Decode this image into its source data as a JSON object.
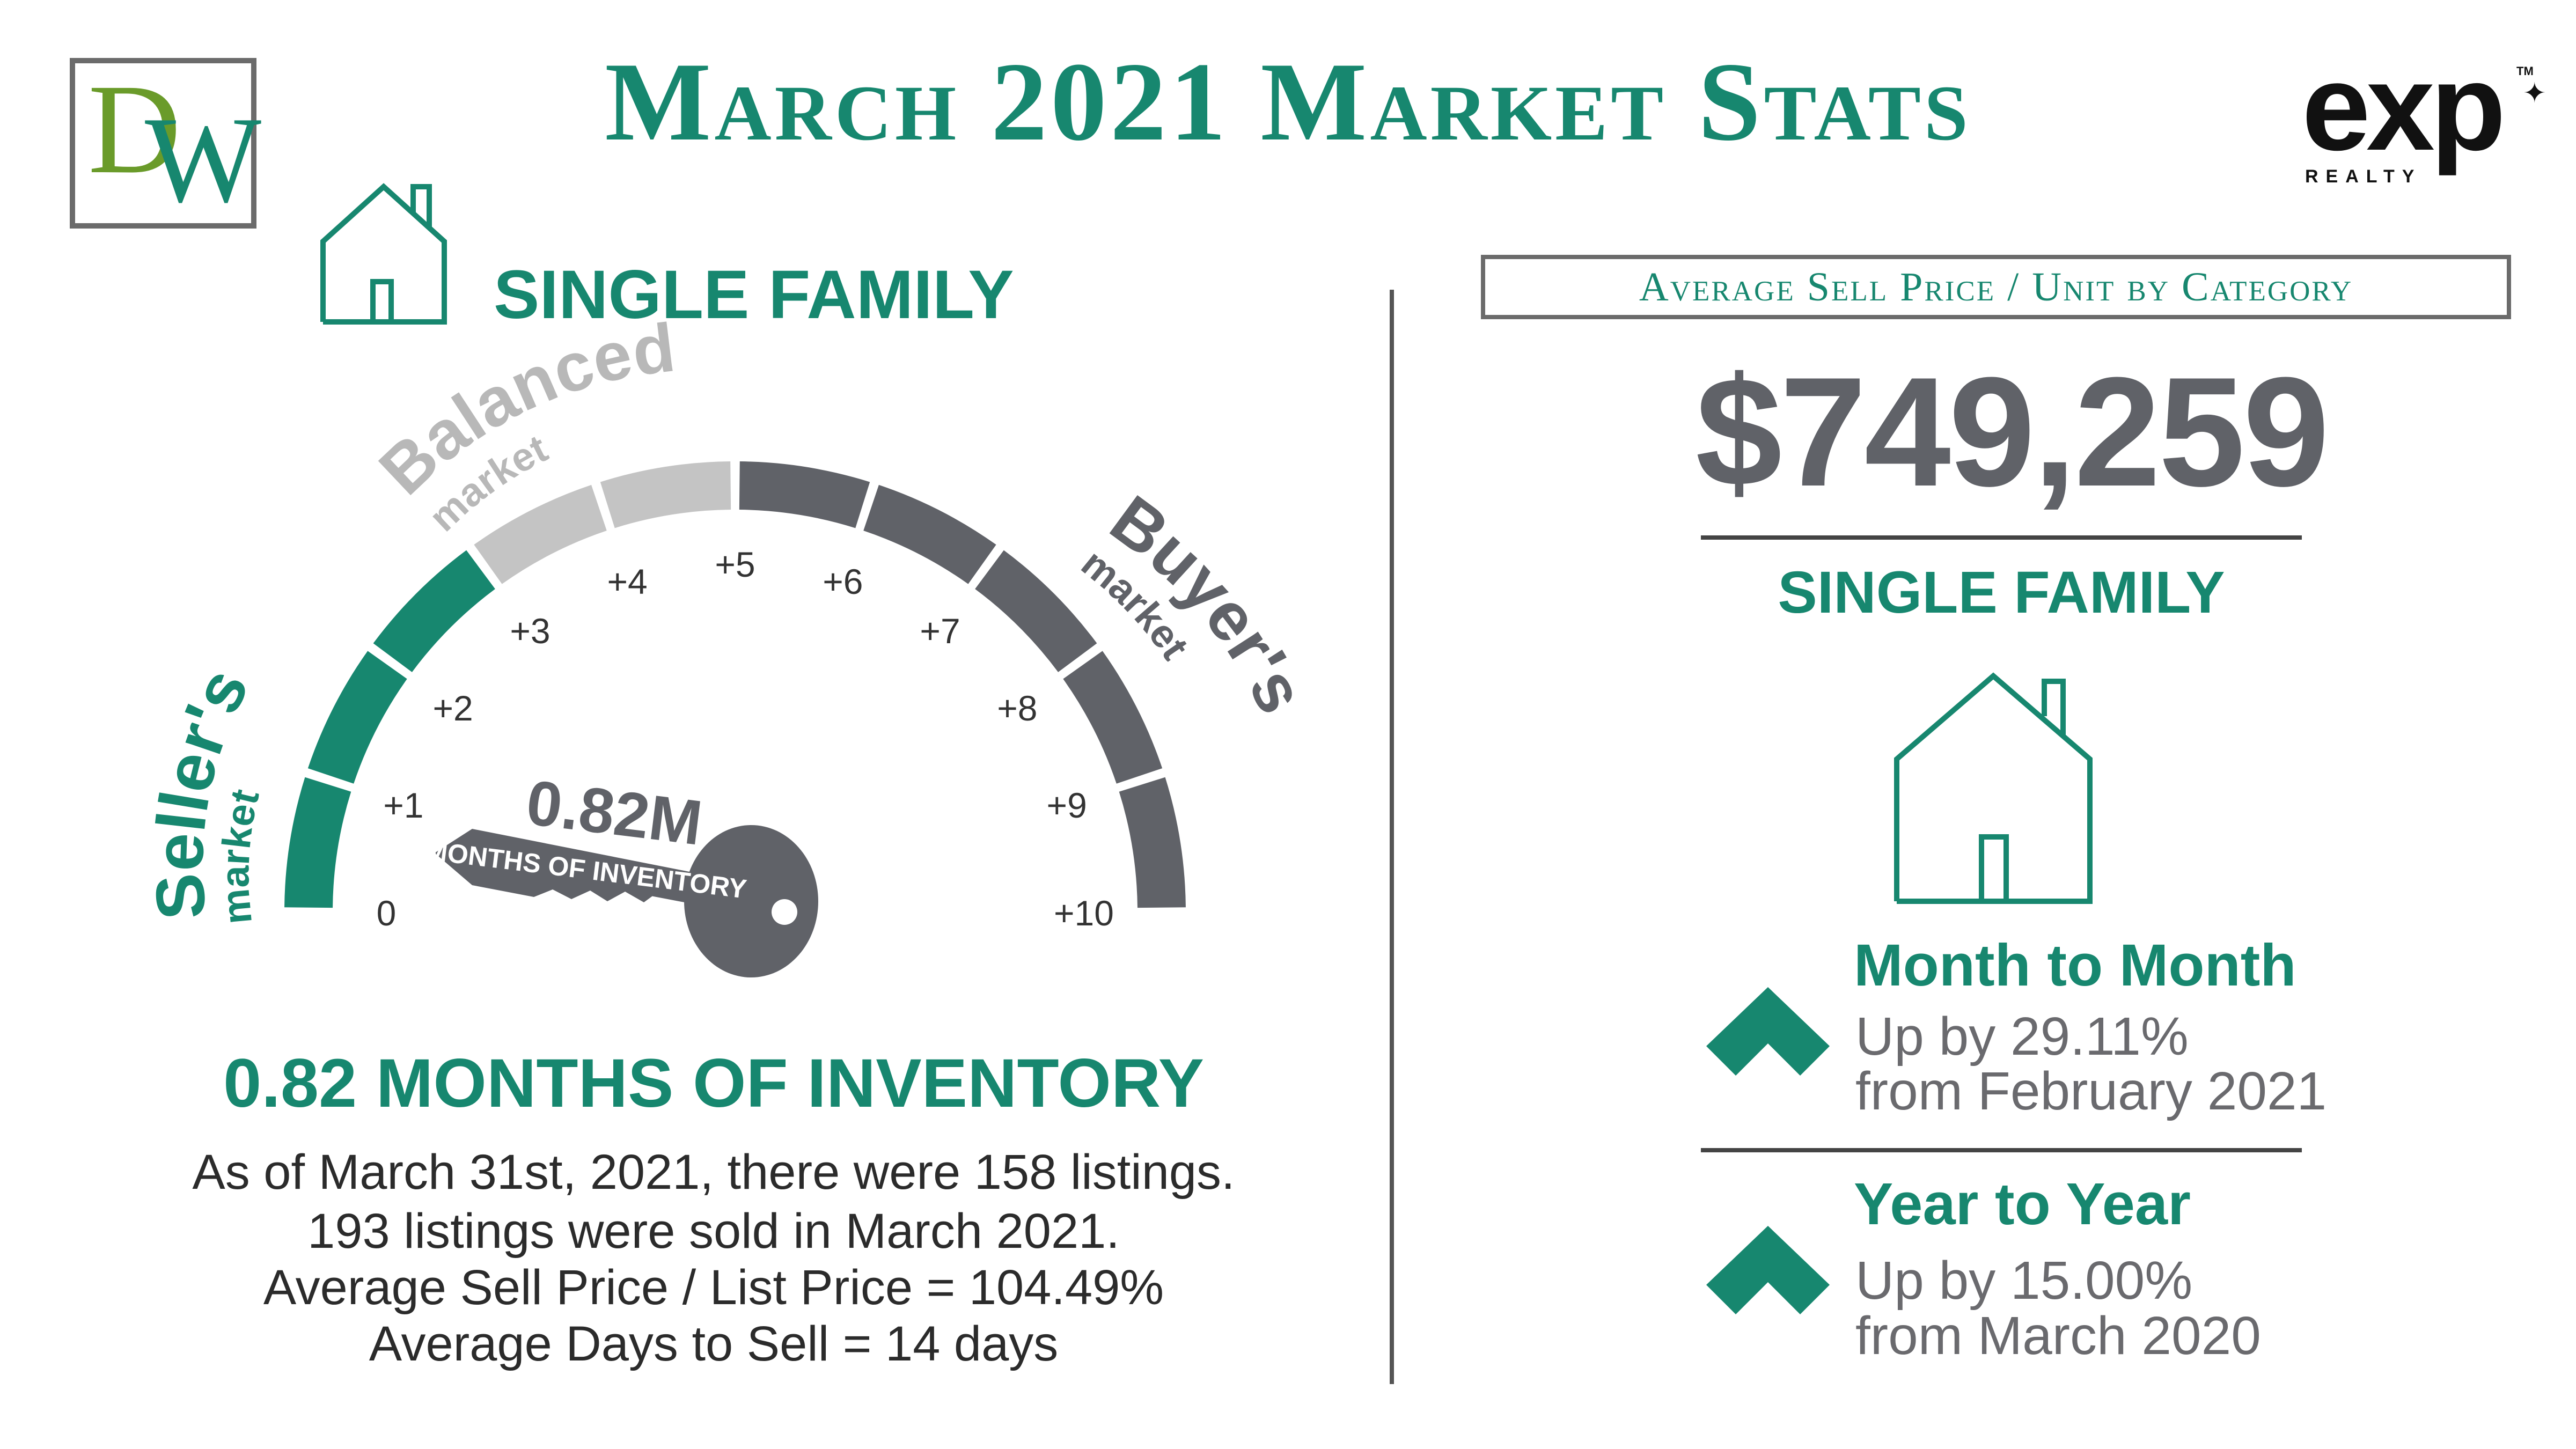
{
  "header": {
    "title": "March 2021 Market Stats",
    "logo_left": {
      "letter_1": "D",
      "letter_2": "W"
    },
    "logo_right": {
      "wordmark": "exp",
      "subtext": "REALTY",
      "trademark": "TM"
    }
  },
  "gauge": {
    "heading": "SINGLE FAMILY",
    "zones": {
      "seller": {
        "title": "Seller's",
        "sub": "market"
      },
      "balanced": {
        "title": "Balanced",
        "sub": "market"
      },
      "buyer": {
        "title": "Buyer's",
        "sub": "market"
      }
    },
    "ticks": [
      "0",
      "+1",
      "+2",
      "+3",
      "+4",
      "+5",
      "+6",
      "+7",
      "+8",
      "+9",
      "+10"
    ],
    "key_value": "0.82M",
    "key_label": "MONTHS OF INVENTORY",
    "value": 0.82,
    "colors": {
      "seller": "#17876f",
      "balanced": "#c4c4c4",
      "buyer": "#606268"
    }
  },
  "inventory": {
    "heading": "0.82 MONTHS OF INVENTORY",
    "lines": [
      "As of March 31st, 2021, there were 158 listings.",
      "193 listings were sold in March 2021.",
      "Average Sell Price / List Price = 104.49%",
      "Average Days to Sell = 14 days"
    ]
  },
  "price_panel": {
    "box_label": "Average Sell Price / Unit by Category",
    "price": "$749,259",
    "category": "SINGLE FAMILY",
    "stats": [
      {
        "title": "Month to Month",
        "line1": "Up by 29.11%",
        "line2": "from February 2021",
        "direction": "up"
      },
      {
        "title": "Year to Year",
        "line1": "Up by 15.00%",
        "line2": "from March 2020",
        "direction": "up"
      }
    ]
  },
  "colors": {
    "accent": "#17876f",
    "gray": "#606268",
    "light_gray": "#c4c4c4"
  }
}
